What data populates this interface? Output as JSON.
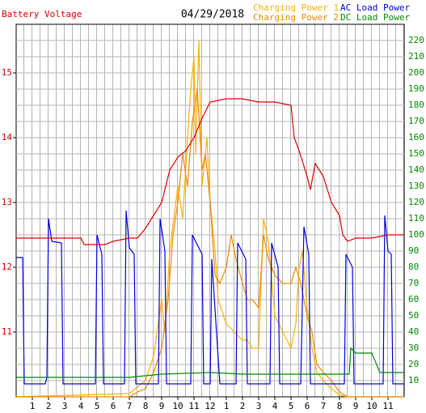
{
  "chart_data": {
    "type": "line",
    "title": "04/29/2018",
    "xlim": [
      0,
      24
    ],
    "xticks": [
      1,
      2,
      3,
      4,
      5,
      6,
      7,
      8,
      9,
      10,
      11,
      12,
      {
        "value": 13,
        "label": "1"
      },
      {
        "value": 14,
        "label": "2"
      },
      {
        "value": 15,
        "label": "3"
      },
      {
        "value": 16,
        "label": "4"
      },
      {
        "value": 17,
        "label": "5"
      },
      {
        "value": 18,
        "label": "6"
      },
      {
        "value": 19,
        "label": "7"
      },
      {
        "value": 20,
        "label": "8"
      },
      {
        "value": 21,
        "label": "9"
      },
      {
        "value": 22,
        "label": "10"
      },
      {
        "value": 23,
        "label": "11"
      }
    ],
    "ylim": [
      10,
      15.75
    ],
    "yticks": [
      11,
      12,
      13,
      14,
      15
    ],
    "y2lim": [
      0,
      230
    ],
    "y2ticks": [
      10,
      20,
      30,
      40,
      50,
      60,
      70,
      80,
      90,
      100,
      110,
      120,
      130,
      140,
      150,
      160,
      170,
      180,
      190,
      200,
      210,
      220
    ],
    "grid": true,
    "series": [
      {
        "name": "Battery Voltage",
        "color": "#dd0000",
        "axis": "y",
        "x": [
          0,
          4,
          4.2,
          5.5,
          6,
          7,
          7.5,
          8,
          9,
          9.5,
          10,
          10.5,
          11,
          11.5,
          12,
          13,
          14,
          15,
          16,
          17,
          17.2,
          17.5,
          18,
          18.2,
          18.5,
          19,
          19.5,
          20,
          20.2,
          20.5,
          21,
          22,
          23,
          24
        ],
        "values": [
          12.45,
          12.45,
          12.35,
          12.35,
          12.4,
          12.45,
          12.45,
          12.6,
          13.0,
          13.5,
          13.7,
          13.8,
          14.0,
          14.3,
          14.55,
          14.6,
          14.6,
          14.55,
          14.55,
          14.5,
          14.0,
          13.8,
          13.4,
          13.2,
          13.6,
          13.4,
          13.0,
          12.8,
          12.5,
          12.4,
          12.45,
          12.45,
          12.5,
          12.5
        ]
      },
      {
        "name": "Charging Power 1",
        "color": "#ffb000",
        "axis": "y2",
        "x": [
          0,
          7,
          8,
          8.5,
          9,
          9.2,
          9.5,
          10,
          10.3,
          10.6,
          10.8,
          11,
          11.1,
          11.3,
          11.5,
          11.8,
          12,
          12.3,
          12.5,
          13,
          13.5,
          14,
          14.3,
          14.6,
          15,
          15.3,
          15.6,
          16,
          16.5,
          17,
          17.3,
          17.5,
          17.7,
          18,
          18.3,
          18.6,
          19,
          19.5,
          20,
          20.5,
          24
        ],
        "values": [
          0,
          2,
          10,
          25,
          60,
          40,
          90,
          130,
          110,
          160,
          190,
          210,
          150,
          220,
          130,
          160,
          120,
          90,
          60,
          45,
          40,
          35,
          35,
          30,
          30,
          110,
          95,
          50,
          40,
          30,
          45,
          80,
          90,
          55,
          30,
          15,
          10,
          5,
          1,
          0,
          0
        ]
      },
      {
        "name": "Charging Power 2",
        "color": "#f08800",
        "axis": "y2",
        "x": [
          0,
          7,
          7.5,
          8,
          8.5,
          9,
          9.4,
          9.7,
          10,
          10.3,
          10.6,
          10.9,
          11.2,
          11.5,
          11.7,
          12,
          12.3,
          12.6,
          13,
          13.3,
          13.6,
          14,
          14.3,
          14.6,
          15,
          15.3,
          15.6,
          16,
          16.5,
          17,
          17.3,
          17.6,
          18,
          18.3,
          18.6,
          19,
          19.5,
          20,
          20.5,
          24
        ],
        "values": [
          0,
          0,
          3,
          5,
          15,
          30,
          60,
          100,
          120,
          150,
          130,
          170,
          190,
          140,
          150,
          120,
          75,
          70,
          80,
          100,
          85,
          70,
          60,
          60,
          55,
          100,
          85,
          75,
          70,
          70,
          80,
          70,
          50,
          40,
          20,
          15,
          10,
          3,
          0,
          0
        ]
      },
      {
        "name": "AC Load Power",
        "color": "#0000dd",
        "axis": "y2",
        "x": [
          0,
          0.4,
          0.5,
          1.8,
          1.9,
          2.0,
          2.2,
          2.8,
          2.9,
          4.9,
          5.0,
          5.3,
          5.4,
          6.7,
          6.8,
          7.0,
          7.3,
          7.4,
          8.8,
          8.9,
          9.2,
          9.3,
          10.8,
          10.9,
          11.5,
          11.6,
          12.0,
          12.1,
          12.6,
          13.6,
          13.7,
          14.2,
          14.3,
          15.7,
          15.8,
          16.2,
          16.3,
          17.6,
          17.8,
          18.1,
          18.2,
          20.3,
          20.4,
          20.8,
          20.9,
          22.7,
          22.8,
          23.0,
          23.2,
          23.3,
          24
        ],
        "values": [
          86,
          86,
          8,
          8,
          12,
          110,
          96,
          95,
          8,
          8,
          100,
          88,
          8,
          8,
          115,
          92,
          88,
          8,
          8,
          110,
          90,
          8,
          8,
          100,
          88,
          8,
          8,
          85,
          8,
          8,
          95,
          85,
          8,
          8,
          95,
          80,
          8,
          8,
          105,
          88,
          8,
          8,
          88,
          80,
          8,
          8,
          112,
          90,
          88,
          8,
          8
        ]
      },
      {
        "name": "DC Load Power",
        "color": "#008800",
        "axis": "y2",
        "x": [
          0,
          7,
          9,
          12,
          14,
          20,
          20.6,
          20.7,
          21,
          22,
          22.5,
          24
        ],
        "values": [
          12,
          12,
          14,
          15,
          14,
          14,
          14,
          30,
          27,
          27,
          15,
          15
        ]
      }
    ]
  }
}
